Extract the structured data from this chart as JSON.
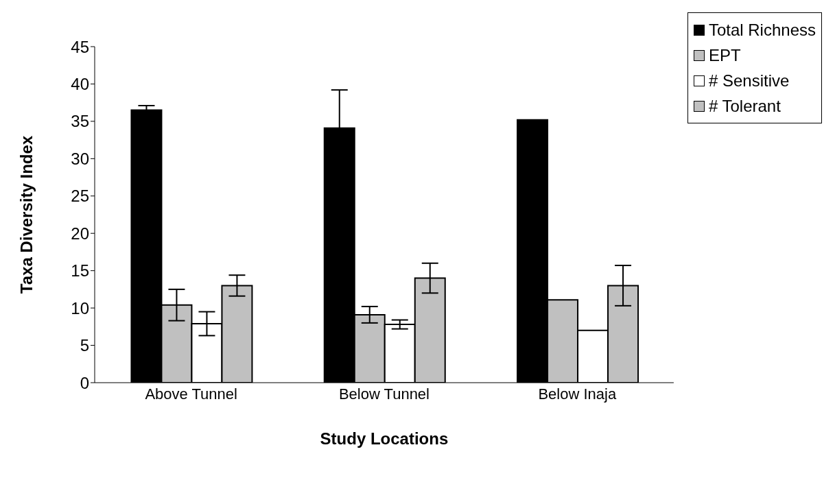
{
  "chart_data": {
    "type": "bar",
    "xlabel": "Study Locations",
    "ylabel": "Taxa Diversity Index",
    "categories": [
      "Above Tunnel",
      "Below Tunnel",
      "Below Inaja"
    ],
    "series": [
      {
        "name": "Total Richness",
        "color": "#000000",
        "values": [
          36.5,
          34.1,
          35.2
        ],
        "errors": [
          0.6,
          5.1,
          null
        ]
      },
      {
        "name": "EPT",
        "color": "#c0c0c0",
        "values": [
          10.4,
          9.1,
          11.1
        ],
        "errors": [
          2.1,
          1.1,
          null
        ]
      },
      {
        "name": "# Sensitive",
        "color": "#ffffff",
        "values": [
          7.9,
          7.8,
          7.0
        ],
        "errors": [
          1.6,
          0.6,
          null
        ]
      },
      {
        "name": "# Tolerant",
        "color": "#c0c0c0",
        "values": [
          13.0,
          14.0,
          13.0
        ],
        "errors": [
          1.4,
          2.0,
          2.7
        ]
      }
    ],
    "ylim": [
      0,
      45
    ],
    "yticks": [
      0,
      5,
      10,
      15,
      20,
      25,
      30,
      35,
      40,
      45
    ],
    "grid": false,
    "legend": "top right"
  }
}
